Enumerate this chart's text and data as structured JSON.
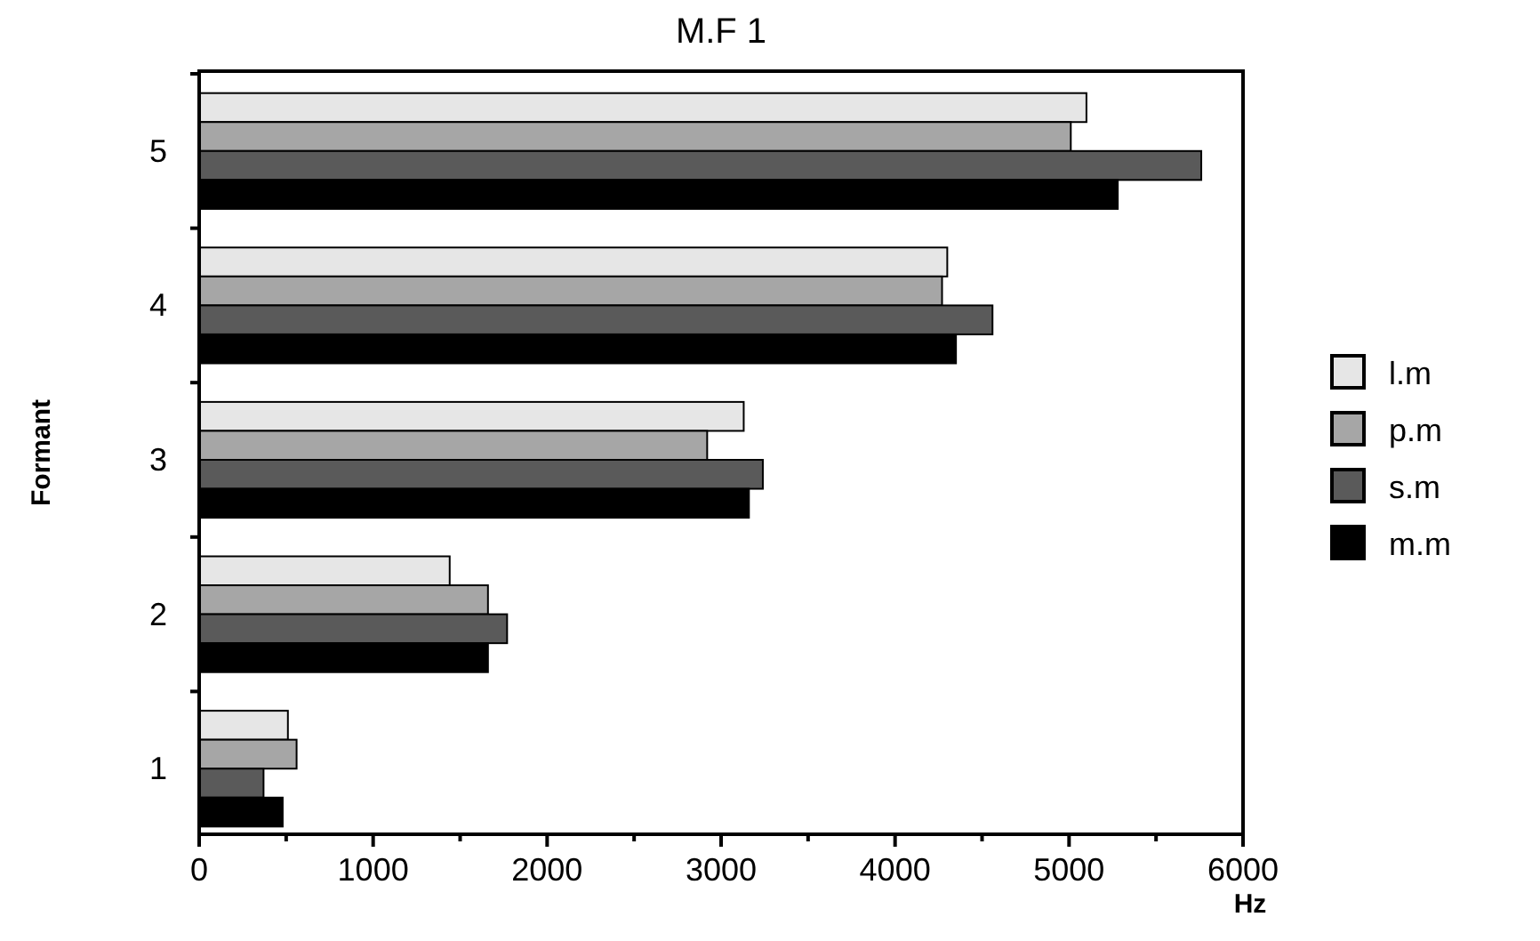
{
  "chart_data": {
    "type": "bar",
    "orientation": "horizontal",
    "title": "M.F  1",
    "xlabel": "Hz",
    "ylabel": "Formant",
    "categories": [
      "5",
      "4",
      "3",
      "2",
      "1"
    ],
    "series": [
      {
        "name": "l.m",
        "color": "#e6e6e6",
        "values": [
          5100,
          4300,
          3130,
          1440,
          510
        ]
      },
      {
        "name": "p.m",
        "color": "#a6a6a6",
        "values": [
          5010,
          4270,
          2920,
          1660,
          560
        ]
      },
      {
        "name": "s.m",
        "color": "#5a5a5a",
        "values": [
          5760,
          4560,
          3240,
          1770,
          370
        ]
      },
      {
        "name": "m.m",
        "color": "#000000",
        "values": [
          5280,
          4350,
          3160,
          1660,
          480
        ]
      }
    ],
    "xlim": [
      0,
      6000
    ],
    "xticks": [
      0,
      {
        "value": 500,
        "label": null
      },
      1000,
      {
        "value": 1500,
        "label": null
      },
      2000,
      {
        "value": 2500,
        "label": null
      },
      3000,
      {
        "value": 3500,
        "label": null
      },
      4000,
      {
        "value": 4500,
        "label": null
      },
      5000,
      {
        "value": 5500,
        "label": null
      },
      6000
    ],
    "legend": "right",
    "grid": false
  }
}
